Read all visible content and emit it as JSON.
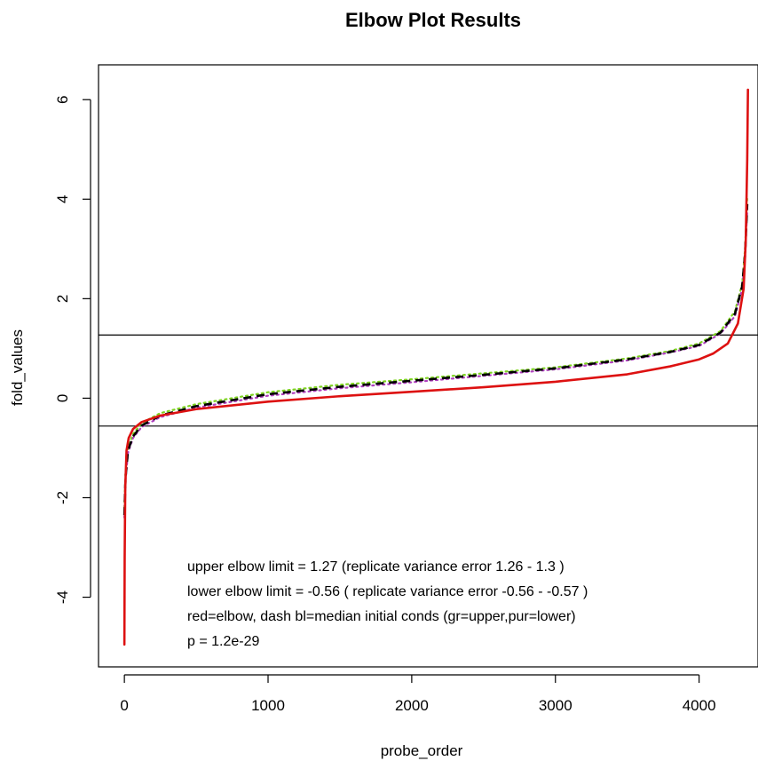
{
  "chart_data": {
    "type": "line",
    "title": "Elbow Plot Results",
    "xlabel": "probe_order",
    "ylabel": "fold_values",
    "xlim": [
      -180,
      4410
    ],
    "ylim": [
      -5.4,
      6.7
    ],
    "x_ticks": [
      0,
      1000,
      2000,
      3000,
      4000
    ],
    "x_tick_labels": [
      "0",
      "1000",
      "2000",
      "3000",
      "4000"
    ],
    "y_ticks": [
      -4,
      -2,
      0,
      2,
      4,
      6
    ],
    "y_tick_labels": [
      "-4",
      "-2",
      "0",
      "2",
      "4",
      "6"
    ],
    "grid": false,
    "hlines": [
      1.27,
      -0.56
    ],
    "annotations": [
      "upper elbow limit = 1.27 (replicate variance error 1.26 - 1.3 )",
      "lower elbow limit = -0.56 ( replicate variance error -0.56 - -0.57 )",
      "red=elbow, dash bl=median initial conds (gr=upper,pur=lower)",
      "p = 1.2e-29"
    ],
    "series": [
      {
        "color": "#7ed321",
        "style": "dotted",
        "x": [
          0,
          8,
          25,
          60,
          120,
          250,
          500,
          1000,
          1500,
          2000,
          2500,
          3000,
          3500,
          3800,
          4000,
          4150,
          4250,
          4300,
          4320,
          4335
        ],
        "y": [
          -2.2,
          -1.5,
          -1.0,
          -0.72,
          -0.5,
          -0.3,
          -0.12,
          0.12,
          0.27,
          0.38,
          0.5,
          0.62,
          0.8,
          0.95,
          1.1,
          1.35,
          1.75,
          2.3,
          3.0,
          4.05
        ]
      },
      {
        "color": "#b040c0",
        "style": "dotted",
        "x": [
          0,
          8,
          25,
          60,
          120,
          250,
          500,
          1000,
          1500,
          2000,
          2500,
          3000,
          3500,
          3800,
          4000,
          4150,
          4250,
          4300,
          4320,
          4335
        ],
        "y": [
          -2.4,
          -1.65,
          -1.1,
          -0.8,
          -0.58,
          -0.38,
          -0.19,
          0.05,
          0.2,
          0.32,
          0.45,
          0.58,
          0.76,
          0.92,
          1.05,
          1.3,
          1.65,
          2.2,
          2.8,
          3.8
        ]
      },
      {
        "color": "#000000",
        "style": "dashed",
        "x": [
          0,
          8,
          25,
          60,
          120,
          250,
          500,
          1000,
          1500,
          2000,
          2500,
          3000,
          3500,
          3800,
          4000,
          4150,
          4250,
          4300,
          4320,
          4335
        ],
        "y": [
          -2.35,
          -1.6,
          -1.05,
          -0.77,
          -0.55,
          -0.35,
          -0.16,
          0.08,
          0.23,
          0.35,
          0.47,
          0.6,
          0.78,
          0.93,
          1.07,
          1.32,
          1.7,
          2.25,
          2.9,
          3.9
        ]
      },
      {
        "color": "#dd1111",
        "style": "solid",
        "x": [
          0,
          2,
          6,
          15,
          30,
          60,
          120,
          250,
          500,
          1000,
          1500,
          2000,
          2500,
          3000,
          3500,
          3800,
          4000,
          4100,
          4200,
          4270,
          4310,
          4325,
          4335,
          4340
        ],
        "y": [
          -4.95,
          -3.2,
          -1.8,
          -1.05,
          -0.8,
          -0.62,
          -0.48,
          -0.35,
          -0.22,
          -0.07,
          0.04,
          0.13,
          0.22,
          0.33,
          0.48,
          0.64,
          0.78,
          0.9,
          1.1,
          1.5,
          2.2,
          3.2,
          4.8,
          6.2
        ]
      }
    ]
  }
}
